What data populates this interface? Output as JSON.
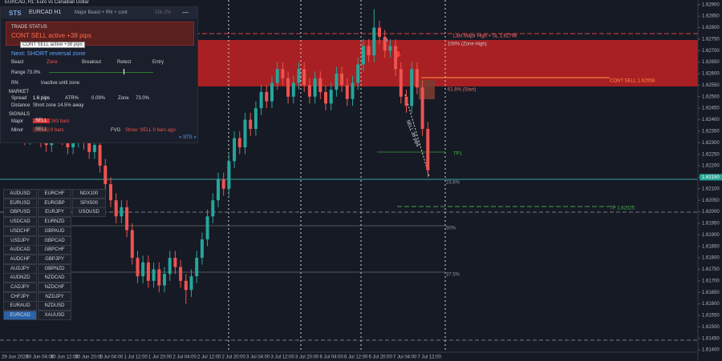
{
  "window": {
    "title": "EURCAD, H1: Euro vs Canadian Dollar"
  },
  "panel": {
    "brand": "STS",
    "symbol": "EURCAD H1",
    "mode": "Major Beast + RN + cont",
    "badge": "Zbk 2%",
    "minimize": "—",
    "status_header": "TRADE STATUS",
    "status": "CONT SELL active +38 pips",
    "tooltip": "CONT SELL active +38 pips",
    "next": "Next: SHORT reversal zone",
    "steps": [
      "Beast",
      "Zone",
      "Breakout",
      "Retest",
      "Entry"
    ],
    "range": "Range 73.0%",
    "rn_label": "RN",
    "rn_value": "Inactive until zone",
    "market_header": "MARKET",
    "spread_label": "Spread",
    "spread": "1.6 pips",
    "atr_label": "ATR%",
    "atr": "0.09%",
    "zone_label": "Zone",
    "zone": "73.0%",
    "distance_label": "Distance",
    "distance": "Short zone 14.5% away",
    "signals_header": "SIGNALS",
    "major_label": "Major",
    "major_signal": "SELL",
    "major_bars": "263 bars",
    "minor_label": "Minor",
    "minor_signal": "SELL",
    "minor_bars": "9 bars",
    "fvg_label": "FVG",
    "fvg": "Show: SELL 0 bars ago",
    "footer": "« STS »"
  },
  "symbols": [
    [
      "AUDUSD",
      "EURUSD",
      "GBPUSD",
      "USDCAD",
      "USDCHF",
      "USDJPY",
      "AUDCAD",
      "AUDCHF",
      "AUDJPY",
      "AUDNZD",
      "CADJPY",
      "CHFJPY",
      "EURAUD",
      "EURCAD"
    ],
    [
      "EURCHF",
      "EURGBP",
      "EURJPY",
      "EURNZD",
      "GBPAUD",
      "GBPCAD",
      "GBPCHF",
      "GBPJPY",
      "GBPNZD",
      "NZDCAD",
      "NZDCHF",
      "NZDJPY",
      "NZDUSD",
      "XAUUSD"
    ],
    [
      "NDX100",
      "SPX500",
      "USOUSD"
    ]
  ],
  "chart": {
    "type": "candlestick",
    "bull_color": "#26a69a",
    "bear_color": "#ef5350",
    "ylim": [
      1.6139,
      1.6292
    ],
    "yticks": [
      {
        "value": 1.614,
        "label": "1.61400"
      },
      {
        "value": 1.6145,
        "label": "1.61450"
      },
      {
        "value": 1.615,
        "label": "1.61500"
      },
      {
        "value": 1.6155,
        "label": "1.61550"
      },
      {
        "value": 1.616,
        "label": "1.61600"
      },
      {
        "value": 1.6165,
        "label": "1.61650"
      },
      {
        "value": 1.617,
        "label": "1.61700"
      },
      {
        "value": 1.6175,
        "label": "1.61750"
      },
      {
        "value": 1.618,
        "label": "1.61800"
      },
      {
        "value": 1.6185,
        "label": "1.61850"
      },
      {
        "value": 1.619,
        "label": "1.61900"
      },
      {
        "value": 1.6195,
        "label": "1.61950"
      },
      {
        "value": 1.62,
        "label": "1.62000"
      },
      {
        "value": 1.6205,
        "label": "1.62050"
      },
      {
        "value": 1.621,
        "label": "1.62100"
      },
      {
        "value": 1.6215,
        "label": "1.62150"
      },
      {
        "value": 1.622,
        "label": "1.62200"
      },
      {
        "value": 1.6225,
        "label": "1.62250"
      },
      {
        "value": 1.623,
        "label": "1.62300"
      },
      {
        "value": 1.6235,
        "label": "1.62350"
      },
      {
        "value": 1.624,
        "label": "1.62400"
      },
      {
        "value": 1.6245,
        "label": "1.62450"
      },
      {
        "value": 1.625,
        "label": "1.62500"
      },
      {
        "value": 1.6255,
        "label": "1.62550"
      },
      {
        "value": 1.626,
        "label": "1.62600"
      },
      {
        "value": 1.6265,
        "label": "1.62650"
      },
      {
        "value": 1.627,
        "label": "1.62700"
      },
      {
        "value": 1.6275,
        "label": "1.62750"
      },
      {
        "value": 1.628,
        "label": "1.62800"
      },
      {
        "value": 1.6285,
        "label": "1.62850"
      },
      {
        "value": 1.629,
        "label": "1.62900"
      }
    ],
    "last_price": {
      "value": 1.6215,
      "label": "1.62150"
    },
    "xticks": [
      "29 Jun 2026",
      "30 Jun 04:00",
      "30 Jun 12:00",
      "30 Jun 20:00",
      "1 Jul 04:00",
      "1 Jul 12:00",
      "1 Jul 20:00",
      "2 Jul 04:00",
      "2 Jul 12:00",
      "2 Jul 20:00",
      "3 Jul 04:00",
      "3 Jul 12:00",
      "3 Jul 20:00",
      "6 Jul 04:00",
      "6 Jul 12:00",
      "6 Jul 20:00",
      "7 Jul 04:00",
      "7 Jul 12:00"
    ],
    "annotations": [
      "Last Major High + SL 1.62798",
      "100% (Zone High)",
      "CONT SELL 1.62558",
      "61.8% (Start)",
      "TP1",
      "23.6%",
      "TP 1.62025",
      "50%",
      "37.5%",
      "SELL 38 pips"
    ],
    "candles": [
      [
        1.6233,
        1.6239,
        1.623,
        1.6236
      ],
      [
        1.6236,
        1.6239,
        1.6231,
        1.6234
      ],
      [
        1.6234,
        1.624,
        1.6231,
        1.6237
      ],
      [
        1.6237,
        1.624,
        1.6232,
        1.6235
      ],
      [
        1.6235,
        1.6238,
        1.6229,
        1.6232
      ],
      [
        1.6232,
        1.6239,
        1.6229,
        1.6236
      ],
      [
        1.6236,
        1.6241,
        1.6233,
        1.6238
      ],
      [
        1.6238,
        1.6241,
        1.6228,
        1.6231
      ],
      [
        1.6231,
        1.6234,
        1.6226,
        1.6229
      ],
      [
        1.6229,
        1.6236,
        1.6226,
        1.6233
      ],
      [
        1.6233,
        1.6239,
        1.623,
        1.6236
      ],
      [
        1.6236,
        1.6239,
        1.6229,
        1.6232
      ],
      [
        1.6232,
        1.6235,
        1.6225,
        1.6228
      ],
      [
        1.6228,
        1.6234,
        1.6225,
        1.6231
      ],
      [
        1.6231,
        1.6238,
        1.6228,
        1.6235
      ],
      [
        1.6235,
        1.6238,
        1.6227,
        1.623
      ],
      [
        1.623,
        1.6233,
        1.6223,
        1.6226
      ],
      [
        1.6226,
        1.6232,
        1.6223,
        1.6229
      ],
      [
        1.6229,
        1.6232,
        1.6217,
        1.622
      ],
      [
        1.622,
        1.6223,
        1.6209,
        1.6212
      ],
      [
        1.6212,
        1.6215,
        1.6202,
        1.6205
      ],
      [
        1.6205,
        1.6208,
        1.6195,
        1.6198
      ],
      [
        1.6198,
        1.6205,
        1.6195,
        1.6202
      ],
      [
        1.6202,
        1.6205,
        1.6189,
        1.6192
      ],
      [
        1.6192,
        1.6195,
        1.6177,
        1.618
      ],
      [
        1.618,
        1.6183,
        1.6169,
        1.6172
      ],
      [
        1.6172,
        1.6181,
        1.6169,
        1.6178
      ],
      [
        1.6178,
        1.6181,
        1.6167,
        1.617
      ],
      [
        1.617,
        1.6178,
        1.6167,
        1.6175
      ],
      [
        1.6175,
        1.6178,
        1.6165,
        1.6168
      ],
      [
        1.6168,
        1.6176,
        1.6165,
        1.6173
      ],
      [
        1.6173,
        1.6183,
        1.617,
        1.618
      ],
      [
        1.618,
        1.6183,
        1.6173,
        1.6176
      ],
      [
        1.6176,
        1.6179,
        1.6167,
        1.617
      ],
      [
        1.617,
        1.6173,
        1.616,
        1.6166
      ],
      [
        1.6166,
        1.6175,
        1.6163,
        1.6172
      ],
      [
        1.6172,
        1.6183,
        1.6169,
        1.618
      ],
      [
        1.618,
        1.6191,
        1.6177,
        1.6188
      ],
      [
        1.6188,
        1.6201,
        1.6185,
        1.6198
      ],
      [
        1.6198,
        1.6208,
        1.6195,
        1.6205
      ],
      [
        1.6205,
        1.6217,
        1.6202,
        1.6214
      ],
      [
        1.6214,
        1.6217,
        1.6207,
        1.621
      ],
      [
        1.621,
        1.6225,
        1.6207,
        1.6222
      ],
      [
        1.6222,
        1.6235,
        1.6219,
        1.6232
      ],
      [
        1.6232,
        1.6235,
        1.6225,
        1.6228
      ],
      [
        1.6228,
        1.6243,
        1.6225,
        1.624
      ],
      [
        1.624,
        1.6243,
        1.6233,
        1.6236
      ],
      [
        1.6236,
        1.6248,
        1.6233,
        1.6245
      ],
      [
        1.6245,
        1.6255,
        1.6242,
        1.6252
      ],
      [
        1.6252,
        1.6255,
        1.6245,
        1.6248
      ],
      [
        1.6248,
        1.6259,
        1.6245,
        1.6256
      ],
      [
        1.6256,
        1.6265,
        1.6253,
        1.6262
      ],
      [
        1.6262,
        1.6265,
        1.6255,
        1.6258
      ],
      [
        1.6258,
        1.6261,
        1.6247,
        1.625
      ],
      [
        1.625,
        1.6259,
        1.6247,
        1.6256
      ],
      [
        1.6256,
        1.6265,
        1.6253,
        1.6262
      ],
      [
        1.6262,
        1.6265,
        1.6252,
        1.6255
      ],
      [
        1.6255,
        1.6258,
        1.6247,
        1.625
      ],
      [
        1.625,
        1.6261,
        1.6247,
        1.6258
      ],
      [
        1.6258,
        1.6261,
        1.6249,
        1.6252
      ],
      [
        1.6252,
        1.6255,
        1.6244,
        1.6247
      ],
      [
        1.6247,
        1.6256,
        1.6244,
        1.6253
      ],
      [
        1.6253,
        1.6263,
        1.625,
        1.626
      ],
      [
        1.626,
        1.6263,
        1.6252,
        1.6255
      ],
      [
        1.6255,
        1.6258,
        1.6246,
        1.6249
      ],
      [
        1.6249,
        1.6259,
        1.6246,
        1.6256
      ],
      [
        1.6256,
        1.6267,
        1.6253,
        1.6264
      ],
      [
        1.6264,
        1.6275,
        1.6261,
        1.6272
      ],
      [
        1.6272,
        1.6275,
        1.6265,
        1.6268
      ],
      [
        1.6268,
        1.6288,
        1.6265,
        1.628
      ],
      [
        1.628,
        1.6283,
        1.6273,
        1.6276
      ],
      [
        1.6276,
        1.6279,
        1.6267,
        1.627
      ],
      [
        1.627,
        1.6275,
        1.6267,
        1.6272
      ],
      [
        1.6272,
        1.6275,
        1.6259,
        1.6262
      ],
      [
        1.6262,
        1.6265,
        1.6247,
        1.625
      ],
      [
        1.625,
        1.6253,
        1.6243,
        1.6246
      ],
      [
        1.6246,
        1.6265,
        1.6243,
        1.6262
      ],
      [
        1.6262,
        1.6265,
        1.6251,
        1.6254
      ],
      [
        1.6254,
        1.6257,
        1.6233,
        1.6236
      ],
      [
        1.6236,
        1.6239,
        1.6215,
        1.6218
      ]
    ]
  }
}
